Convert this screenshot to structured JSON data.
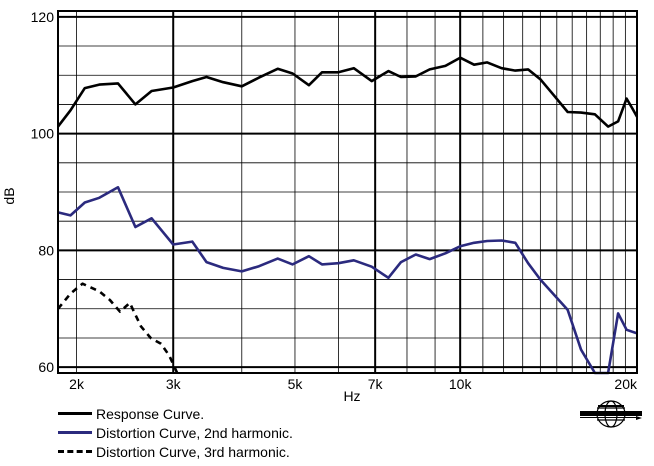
{
  "chart_data": {
    "type": "line",
    "xscale": "log",
    "xlabel": "Hz",
    "ylabel": "dB",
    "xlim": [
      1850,
      21000
    ],
    "ylim": [
      59,
      121
    ],
    "y_ticks": [
      60,
      80,
      100,
      120
    ],
    "x_ticks": [
      {
        "value": 2000,
        "label": "2k"
      },
      {
        "value": 3000,
        "label": "3k"
      },
      {
        "value": 5000,
        "label": "5k"
      },
      {
        "value": 7000,
        "label": "7k"
      },
      {
        "value": 10000,
        "label": "10k"
      },
      {
        "value": 20000,
        "label": "20k"
      }
    ],
    "grid": true,
    "legend_position": "bottom-left",
    "series": [
      {
        "name": "Response Curve.",
        "color": "#000000",
        "style": "solid",
        "points": [
          [
            1850,
            101.2
          ],
          [
            1950,
            104.0
          ],
          [
            2070,
            107.8
          ],
          [
            2200,
            108.4
          ],
          [
            2380,
            108.6
          ],
          [
            2560,
            105.0
          ],
          [
            2740,
            107.3
          ],
          [
            3000,
            107.9
          ],
          [
            3250,
            109.0
          ],
          [
            3450,
            109.7
          ],
          [
            3700,
            108.8
          ],
          [
            4000,
            108.1
          ],
          [
            4300,
            109.6
          ],
          [
            4650,
            111.1
          ],
          [
            4950,
            110.3
          ],
          [
            5300,
            108.3
          ],
          [
            5600,
            110.5
          ],
          [
            6000,
            110.5
          ],
          [
            6400,
            111.2
          ],
          [
            6900,
            109.0
          ],
          [
            7400,
            110.7
          ],
          [
            7800,
            109.7
          ],
          [
            8300,
            109.8
          ],
          [
            8800,
            111.0
          ],
          [
            9400,
            111.6
          ],
          [
            10000,
            113.0
          ],
          [
            10600,
            111.8
          ],
          [
            11200,
            112.2
          ],
          [
            11900,
            111.2
          ],
          [
            12600,
            110.8
          ],
          [
            13300,
            111.0
          ],
          [
            14000,
            109.3
          ],
          [
            14800,
            106.6
          ],
          [
            15700,
            103.7
          ],
          [
            16600,
            103.6
          ],
          [
            17600,
            103.3
          ],
          [
            18600,
            101.2
          ],
          [
            19400,
            102.1
          ],
          [
            20100,
            106.0
          ],
          [
            20600,
            104.3
          ],
          [
            21000,
            102.9
          ]
        ]
      },
      {
        "name": "Distortion Curve, 2nd harmonic.",
        "color": "#2b2a7e",
        "style": "solid",
        "points": [
          [
            1850,
            86.5
          ],
          [
            1950,
            86.0
          ],
          [
            2070,
            88.2
          ],
          [
            2200,
            89.0
          ],
          [
            2380,
            90.8
          ],
          [
            2560,
            84.0
          ],
          [
            2740,
            85.5
          ],
          [
            3000,
            81.0
          ],
          [
            3250,
            81.5
          ],
          [
            3450,
            78.0
          ],
          [
            3700,
            77.0
          ],
          [
            4000,
            76.4
          ],
          [
            4300,
            77.3
          ],
          [
            4650,
            78.6
          ],
          [
            4950,
            77.6
          ],
          [
            5300,
            79.0
          ],
          [
            5600,
            77.6
          ],
          [
            6000,
            77.8
          ],
          [
            6400,
            78.3
          ],
          [
            6900,
            77.2
          ],
          [
            7400,
            75.3
          ],
          [
            7800,
            78.0
          ],
          [
            8300,
            79.3
          ],
          [
            8800,
            78.5
          ],
          [
            9400,
            79.5
          ],
          [
            10000,
            80.7
          ],
          [
            10600,
            81.3
          ],
          [
            11200,
            81.6
          ],
          [
            11900,
            81.7
          ],
          [
            12600,
            81.3
          ],
          [
            13300,
            77.8
          ],
          [
            14000,
            75.0
          ],
          [
            14800,
            72.5
          ],
          [
            15700,
            69.8
          ],
          [
            16600,
            63.0
          ],
          [
            17600,
            59.0
          ],
          [
            18600,
            59.0
          ],
          [
            19400,
            69.2
          ],
          [
            20100,
            66.4
          ],
          [
            21000,
            65.8
          ]
        ]
      },
      {
        "name": "Distortion Curve, 3rd harmonic.",
        "color": "#000000",
        "style": "dashed",
        "points": [
          [
            1850,
            70.0
          ],
          [
            1950,
            72.6
          ],
          [
            2050,
            74.3
          ],
          [
            2200,
            73.0
          ],
          [
            2300,
            71.5
          ],
          [
            2400,
            69.5
          ],
          [
            2500,
            71.0
          ],
          [
            2620,
            67.0
          ],
          [
            2730,
            65.0
          ],
          [
            2850,
            64.0
          ],
          [
            2950,
            62.0
          ],
          [
            3050,
            59.0
          ]
        ]
      }
    ]
  },
  "logo_name": "globe-logo"
}
